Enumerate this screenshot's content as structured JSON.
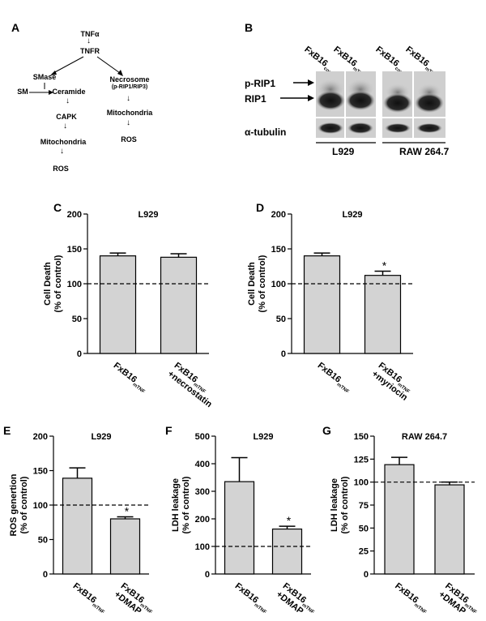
{
  "panels": {
    "a": "A",
    "b": "B",
    "c": "C",
    "d": "D",
    "e": "E",
    "f": "F",
    "g": "G"
  },
  "pathway": {
    "tnfa": "TNFα",
    "tnfr": "TNFR",
    "smase": "SMase",
    "sm": "SM",
    "ceramide": "Ceramide",
    "capk": "CAPK",
    "mito_left": "Mitochondria",
    "ros_left": "ROS",
    "necrosome": "Necrosome",
    "necrosome_sub": "(p-RIP1/RIP3)",
    "mito_right": "Mitochondria",
    "ros_right": "ROS"
  },
  "blot": {
    "columns": [
      {
        "main": "FxB16",
        "sub": "cont"
      },
      {
        "main": "FxB16",
        "sub": "mTNF"
      },
      {
        "main": "FxB16",
        "sub": "cont"
      },
      {
        "main": "FxB16",
        "sub": "mTNF"
      }
    ],
    "row_labels": [
      "p-RIP1",
      "RIP1",
      "α-tubulin"
    ],
    "groups": [
      "L929",
      "RAW 264.7"
    ]
  },
  "chart_data": [
    {
      "id": "C",
      "type": "bar",
      "title": "L929",
      "ylabel": [
        "Cell Death",
        "(% of control)"
      ],
      "ylim": [
        0,
        200
      ],
      "yticks": [
        0,
        50,
        100,
        150,
        200
      ],
      "categories": [
        {
          "main": "FxB16",
          "sub": "mTNF",
          "extra": ""
        },
        {
          "main": "FxB16",
          "sub": "mTNF",
          "extra": "+necrostatin"
        }
      ],
      "values": [
        140,
        138
      ],
      "errors": [
        4,
        5
      ],
      "significance": [
        "",
        ""
      ],
      "reference_line": 100
    },
    {
      "id": "D",
      "type": "bar",
      "title": "L929",
      "ylabel": [
        "Cell Death",
        "(% of control)"
      ],
      "ylim": [
        0,
        200
      ],
      "yticks": [
        0,
        50,
        100,
        150,
        200
      ],
      "categories": [
        {
          "main": "FxB16",
          "sub": "mTNF",
          "extra": ""
        },
        {
          "main": "FxB16",
          "sub": "mTNF",
          "extra": "+myriocin"
        }
      ],
      "values": [
        140,
        112
      ],
      "errors": [
        4,
        6
      ],
      "significance": [
        "",
        "*"
      ],
      "reference_line": 100
    },
    {
      "id": "E",
      "type": "bar",
      "title": "L929",
      "ylabel": [
        "ROS genertion",
        "(% of control)"
      ],
      "ylim": [
        0,
        200
      ],
      "yticks": [
        0,
        50,
        100,
        150,
        200
      ],
      "categories": [
        {
          "main": "FxB16",
          "sub": "mTNF",
          "extra": ""
        },
        {
          "main": "FxB16",
          "sub": "mTNF",
          "extra": "+DMAP"
        }
      ],
      "values": [
        139,
        80
      ],
      "errors": [
        15,
        3
      ],
      "significance": [
        "",
        "*"
      ],
      "reference_line": 100
    },
    {
      "id": "F",
      "type": "bar",
      "title": "L929",
      "ylabel": [
        "LDH leakage",
        "(% of control)"
      ],
      "ylim": [
        0,
        500
      ],
      "yticks": [
        0,
        100,
        200,
        300,
        400,
        500
      ],
      "categories": [
        {
          "main": "FxB16",
          "sub": "mTNF",
          "extra": ""
        },
        {
          "main": "FxB16",
          "sub": "mTNF",
          "extra": "+DMAP"
        }
      ],
      "values": [
        335,
        163
      ],
      "errors": [
        87,
        10
      ],
      "significance": [
        "",
        "*"
      ],
      "reference_line": 100
    },
    {
      "id": "G",
      "type": "bar",
      "title": "RAW 264.7",
      "ylabel": [
        "LDH leakage",
        "(% of control)"
      ],
      "ylim": [
        0,
        150
      ],
      "yticks": [
        0,
        25,
        50,
        75,
        100,
        125,
        150
      ],
      "categories": [
        {
          "main": "FxB16",
          "sub": "mTNF",
          "extra": ""
        },
        {
          "main": "FxB16",
          "sub": "mTNF",
          "extra": "+DMAP"
        }
      ],
      "values": [
        119,
        97
      ],
      "errors": [
        8,
        3
      ],
      "significance": [
        "",
        ""
      ],
      "reference_line": 100
    }
  ]
}
